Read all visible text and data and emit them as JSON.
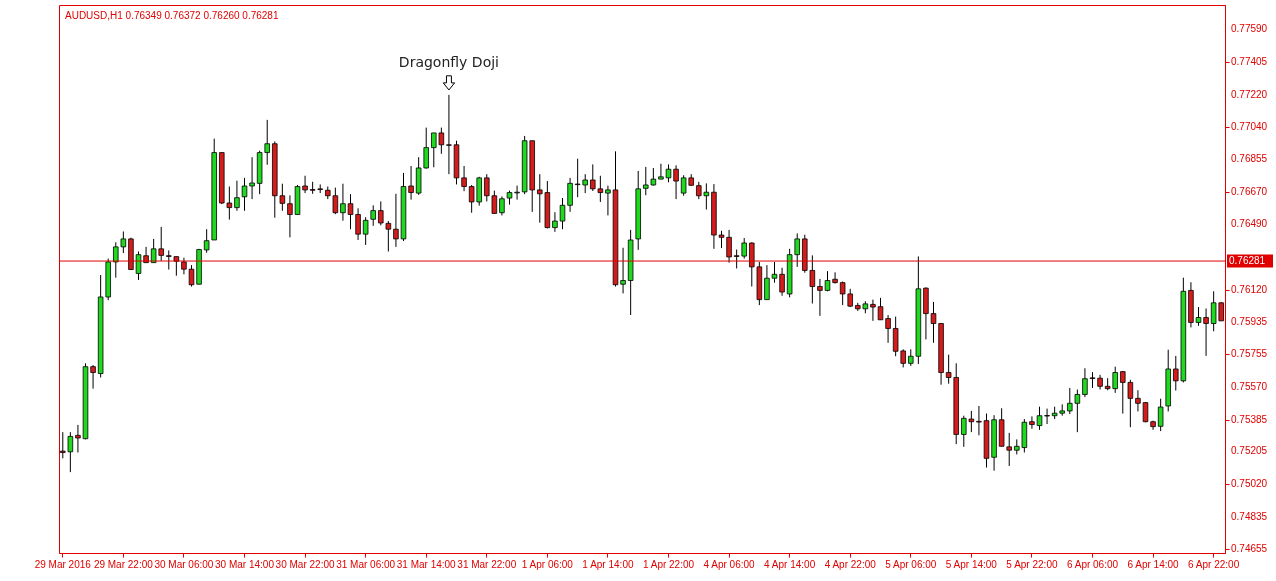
{
  "chart_data": {
    "type": "candlestick",
    "title": "AUDUSD,H1  0.76349 0.76372 0.76260 0.76281",
    "categories": [
      "29 Mar 2016",
      null,
      null,
      null,
      null,
      null,
      null,
      null,
      "29 Mar 22:00",
      null,
      null,
      null,
      null,
      null,
      null,
      null,
      "30 Mar 06:00",
      null,
      null,
      null,
      null,
      null,
      null,
      null,
      "30 Mar 14:00",
      null,
      null,
      null,
      null,
      null,
      null,
      null,
      "30 Mar 22:00",
      null,
      null,
      null,
      null,
      null,
      null,
      null,
      "31 Mar 06:00",
      null,
      null,
      null,
      null,
      null,
      null,
      null,
      "31 Mar 14:00",
      null,
      null,
      null,
      null,
      null,
      null,
      null,
      "31 Mar 22:00",
      null,
      null,
      null,
      null,
      null,
      null,
      null,
      "1 Apr 06:00",
      null,
      null,
      null,
      null,
      null,
      null,
      null,
      "1 Apr 14:00",
      null,
      null,
      null,
      null,
      null,
      null,
      null,
      "1 Apr 22:00",
      null,
      null,
      null,
      null,
      null,
      null,
      null,
      "4 Apr 06:00",
      null,
      null,
      null,
      null,
      null,
      null,
      null,
      "4 Apr 14:00",
      null,
      null,
      null,
      null,
      null,
      null,
      null,
      "4 Apr 22:00",
      null,
      null,
      null,
      null,
      null,
      null,
      null,
      "5 Apr 06:00",
      null,
      null,
      null,
      null,
      null,
      null,
      null,
      "5 Apr 14:00",
      null,
      null,
      null,
      null,
      null,
      null,
      null,
      "5 Apr 22:00",
      null,
      null,
      null,
      null,
      null,
      null,
      null,
      "6 Apr 06:00",
      null,
      null,
      null,
      null,
      null,
      null,
      null,
      "6 Apr 14:00",
      null,
      null,
      null,
      null,
      null,
      null,
      null,
      "6 Apr 22:00",
      null
    ],
    "ohlc": [
      [
        0.75207,
        0.75314,
        0.75166,
        0.75199
      ],
      [
        0.75203,
        0.75314,
        0.75088,
        0.7529
      ],
      [
        0.75296,
        0.75355,
        0.75199,
        0.75281
      ],
      [
        0.75277,
        0.75703,
        0.75273,
        0.75684
      ],
      [
        0.75684,
        0.75693,
        0.7556,
        0.75651
      ],
      [
        0.75645,
        0.76202,
        0.75623,
        0.76078
      ],
      [
        0.76078,
        0.76295,
        0.7606,
        0.76276
      ],
      [
        0.76276,
        0.76387,
        0.76187,
        0.76361
      ],
      [
        0.76361,
        0.76448,
        0.76326,
        0.76406
      ],
      [
        0.76406,
        0.76413,
        0.7623,
        0.76233
      ],
      [
        0.76211,
        0.76335,
        0.76174,
        0.76317
      ],
      [
        0.76311,
        0.76361,
        0.76272,
        0.76272
      ],
      [
        0.76272,
        0.76406,
        0.76272,
        0.7635
      ],
      [
        0.7635,
        0.76474,
        0.76282,
        0.76313
      ],
      [
        0.76311,
        0.76341,
        0.76233,
        0.76307
      ],
      [
        0.76306,
        0.76306,
        0.76198,
        0.7628
      ],
      [
        0.76276,
        0.763,
        0.76206,
        0.76235
      ],
      [
        0.76235,
        0.76258,
        0.76137,
        0.76147
      ],
      [
        0.7615,
        0.7635,
        0.7615,
        0.76346
      ],
      [
        0.76344,
        0.76461,
        0.76328,
        0.76396
      ],
      [
        0.764,
        0.76973,
        0.764,
        0.76894
      ],
      [
        0.76894,
        0.76894,
        0.76603,
        0.76609
      ],
      [
        0.76609,
        0.76702,
        0.76515,
        0.76583
      ],
      [
        0.76583,
        0.76735,
        0.76565,
        0.76639
      ],
      [
        0.76644,
        0.76751,
        0.76565,
        0.76705
      ],
      [
        0.76705,
        0.76868,
        0.76631,
        0.76722
      ],
      [
        0.7672,
        0.76905,
        0.76659,
        0.76894
      ],
      [
        0.76894,
        0.77079,
        0.76825,
        0.76944
      ],
      [
        0.76944,
        0.76957,
        0.76526,
        0.7665
      ],
      [
        0.7665,
        0.76718,
        0.76565,
        0.76607
      ],
      [
        0.76605,
        0.76652,
        0.76415,
        0.76544
      ],
      [
        0.76544,
        0.76711,
        0.76544,
        0.76702
      ],
      [
        0.76705,
        0.76763,
        0.76665,
        0.76683
      ],
      [
        0.76685,
        0.76729,
        0.76661,
        0.76681
      ],
      [
        0.76689,
        0.76714,
        0.76665,
        0.76685
      ],
      [
        0.76681,
        0.76702,
        0.76631,
        0.7665
      ],
      [
        0.7665,
        0.76696,
        0.76546,
        0.76554
      ],
      [
        0.76554,
        0.76718,
        0.76509,
        0.76605
      ],
      [
        0.76605,
        0.76659,
        0.76461,
        0.76544
      ],
      [
        0.76544,
        0.76579,
        0.764,
        0.76433
      ],
      [
        0.76433,
        0.76529,
        0.76372,
        0.76511
      ],
      [
        0.76517,
        0.76596,
        0.7648,
        0.76566
      ],
      [
        0.76566,
        0.76618,
        0.76483,
        0.76496
      ],
      [
        0.76494,
        0.76507,
        0.76335,
        0.76461
      ],
      [
        0.76461,
        0.76661,
        0.76361,
        0.76406
      ],
      [
        0.76406,
        0.76779,
        0.76394,
        0.76702
      ],
      [
        0.76705,
        0.76818,
        0.76628,
        0.76668
      ],
      [
        0.76665,
        0.76868,
        0.76655,
        0.76807
      ],
      [
        0.76807,
        0.77035,
        0.76803,
        0.76922
      ],
      [
        0.76922,
        0.77005,
        0.76811,
        0.77005
      ],
      [
        0.77005,
        0.77035,
        0.76887,
        0.76938
      ],
      [
        0.76938,
        0.7722,
        0.76772,
        0.76935
      ],
      [
        0.76938,
        0.76961,
        0.76714,
        0.76751
      ],
      [
        0.76751,
        0.76818,
        0.76676,
        0.76702
      ],
      [
        0.76702,
        0.76711,
        0.76554,
        0.76615
      ],
      [
        0.76615,
        0.76757,
        0.76594,
        0.76751
      ],
      [
        0.76751,
        0.76772,
        0.76618,
        0.7665
      ],
      [
        0.7665,
        0.76679,
        0.7655,
        0.7655
      ],
      [
        0.76554,
        0.76646,
        0.76539,
        0.76633
      ],
      [
        0.76637,
        0.76679,
        0.766,
        0.76668
      ],
      [
        0.76666,
        0.76707,
        0.76628,
        0.7667
      ],
      [
        0.76672,
        0.76988,
        0.76659,
        0.76961
      ],
      [
        0.76961,
        0.76961,
        0.76559,
        0.76683
      ],
      [
        0.76683,
        0.76772,
        0.76498,
        0.76661
      ],
      [
        0.76668,
        0.76733,
        0.76465,
        0.7647
      ],
      [
        0.7647,
        0.76557,
        0.76446,
        0.76507
      ],
      [
        0.76507,
        0.76637,
        0.76461,
        0.76596
      ],
      [
        0.76596,
        0.76751,
        0.76559,
        0.7672
      ],
      [
        0.76716,
        0.76859,
        0.76642,
        0.76713
      ],
      [
        0.76711,
        0.76772,
        0.76665,
        0.76739
      ],
      [
        0.76739,
        0.76827,
        0.76677,
        0.76689
      ],
      [
        0.76689,
        0.76763,
        0.76615,
        0.76668
      ],
      [
        0.76665,
        0.76707,
        0.76539,
        0.76683
      ],
      [
        0.76683,
        0.76901,
        0.76137,
        0.76147
      ],
      [
        0.7615,
        0.76356,
        0.76098,
        0.76171
      ],
      [
        0.76171,
        0.76457,
        0.75976,
        0.764
      ],
      [
        0.76406,
        0.7679,
        0.76344,
        0.76689
      ],
      [
        0.76692,
        0.76813,
        0.76653,
        0.76711
      ],
      [
        0.76711,
        0.76807,
        0.76707,
        0.76744
      ],
      [
        0.76744,
        0.76831,
        0.76744,
        0.76757
      ],
      [
        0.76751,
        0.76827,
        0.76726,
        0.768
      ],
      [
        0.768,
        0.76822,
        0.76631,
        0.76733
      ],
      [
        0.76665,
        0.76766,
        0.7665,
        0.76751
      ],
      [
        0.76751,
        0.76772,
        0.76705,
        0.76709
      ],
      [
        0.76707,
        0.76729,
        0.76631,
        0.7665
      ],
      [
        0.7665,
        0.7672,
        0.76572,
        0.7667
      ],
      [
        0.7667,
        0.76716,
        0.7635,
        0.76428
      ],
      [
        0.76428,
        0.76452,
        0.76354,
        0.76415
      ],
      [
        0.76415,
        0.76457,
        0.76272,
        0.76304
      ],
      [
        0.76311,
        0.76346,
        0.76239,
        0.76307
      ],
      [
        0.76309,
        0.76411,
        0.76295,
        0.76383
      ],
      [
        0.76383,
        0.76387,
        0.76137,
        0.76248
      ],
      [
        0.76248,
        0.76276,
        0.76032,
        0.76063
      ],
      [
        0.76063,
        0.76258,
        0.76063,
        0.76184
      ],
      [
        0.76184,
        0.76276,
        0.76159,
        0.76206
      ],
      [
        0.76206,
        0.76243,
        0.76085,
        0.76106
      ],
      [
        0.76095,
        0.7635,
        0.76076,
        0.76317
      ],
      [
        0.76317,
        0.76437,
        0.76248,
        0.76406
      ],
      [
        0.76406,
        0.7643,
        0.76215,
        0.76228
      ],
      [
        0.76228,
        0.76313,
        0.76041,
        0.76137
      ],
      [
        0.76137,
        0.7618,
        0.75971,
        0.76115
      ],
      [
        0.76115,
        0.76224,
        0.7611,
        0.76171
      ],
      [
        0.76178,
        0.76217,
        0.76154,
        0.76159
      ],
      [
        0.76159,
        0.76165,
        0.76032,
        0.76095
      ],
      [
        0.76095,
        0.76124,
        0.76021,
        0.76026
      ],
      [
        0.7603,
        0.76045,
        0.75999,
        0.76011
      ],
      [
        0.76011,
        0.76054,
        0.75986,
        0.76039
      ],
      [
        0.76036,
        0.76063,
        0.75943,
        0.76021
      ],
      [
        0.76023,
        0.76073,
        0.75949,
        0.75949
      ],
      [
        0.75956,
        0.75976,
        0.75819,
        0.759
      ],
      [
        0.759,
        0.75967,
        0.75743,
        0.75771
      ],
      [
        0.75773,
        0.75782,
        0.7568,
        0.75703
      ],
      [
        0.75703,
        0.75782,
        0.75688,
        0.75743
      ],
      [
        0.75743,
        0.76307,
        0.75699,
        0.76124
      ],
      [
        0.76128,
        0.76132,
        0.75838,
        0.75984
      ],
      [
        0.75984,
        0.7605,
        0.75819,
        0.75928
      ],
      [
        0.75928,
        0.75928,
        0.75582,
        0.75651
      ],
      [
        0.75651,
        0.75752,
        0.75588,
        0.75623
      ],
      [
        0.75623,
        0.75703,
        0.75246,
        0.75301
      ],
      [
        0.75301,
        0.75407,
        0.75231,
        0.75392
      ],
      [
        0.75388,
        0.75434,
        0.75314,
        0.75373
      ],
      [
        0.75375,
        0.75462,
        0.75296,
        0.75371
      ],
      [
        0.75379,
        0.75419,
        0.75114,
        0.75166
      ],
      [
        0.75172,
        0.7541,
        0.75096,
        0.75384
      ],
      [
        0.75384,
        0.75449,
        0.75234,
        0.75234
      ],
      [
        0.75231,
        0.7531,
        0.75123,
        0.75212
      ],
      [
        0.75212,
        0.75273,
        0.75188,
        0.75234
      ],
      [
        0.75227,
        0.75388,
        0.75199,
        0.7537
      ],
      [
        0.75373,
        0.75403,
        0.75333,
        0.75357
      ],
      [
        0.75351,
        0.75458,
        0.75327,
        0.75407
      ],
      [
        0.75408,
        0.75447,
        0.7536,
        0.75405
      ],
      [
        0.75407,
        0.75458,
        0.75388,
        0.75421
      ],
      [
        0.75421,
        0.75471,
        0.75407,
        0.75434
      ],
      [
        0.75434,
        0.75564,
        0.75416,
        0.75477
      ],
      [
        0.75477,
        0.75555,
        0.75314,
        0.75527
      ],
      [
        0.75527,
        0.75675,
        0.75512,
        0.75616
      ],
      [
        0.75621,
        0.75653,
        0.75564,
        0.75617
      ],
      [
        0.75619,
        0.75638,
        0.75555,
        0.75573
      ],
      [
        0.75573,
        0.75619,
        0.75551,
        0.7556
      ],
      [
        0.7556,
        0.75684,
        0.75536,
        0.75651
      ],
      [
        0.75656,
        0.7566,
        0.75419,
        0.75595
      ],
      [
        0.75595,
        0.7561,
        0.75342,
        0.75505
      ],
      [
        0.75505,
        0.75551,
        0.75431,
        0.75477
      ],
      [
        0.75481,
        0.75484,
        0.7537,
        0.75373
      ],
      [
        0.75373,
        0.75379,
        0.75327,
        0.75345
      ],
      [
        0.75347,
        0.75503,
        0.7532,
        0.75456
      ],
      [
        0.75462,
        0.7578,
        0.75431,
        0.75671
      ],
      [
        0.75671,
        0.75745,
        0.75549,
        0.75604
      ],
      [
        0.75604,
        0.76187,
        0.75595,
        0.7611
      ],
      [
        0.76115,
        0.76161,
        0.75906,
        0.75934
      ],
      [
        0.75934,
        0.76021,
        0.75915,
        0.75962
      ],
      [
        0.75962,
        0.76013,
        0.75745,
        0.75928
      ],
      [
        0.75928,
        0.7611,
        0.75884,
        0.76045
      ],
      [
        0.76045,
        0.7605,
        0.75943,
        0.75943
      ]
    ],
    "colors": [
      "#d41c1c",
      "#20d820",
      "#d41c1c",
      "#20d820",
      "#d41c1c",
      "#20d820",
      "#20d820",
      "#20d820",
      "#20d820",
      "#d41c1c",
      "#20d820",
      "#d41c1c",
      "#20d820",
      "#d41c1c",
      "#d41c1c",
      "#d41c1c",
      "#d41c1c",
      "#d41c1c",
      "#20d820",
      "#20d820",
      "#20d820",
      "#d41c1c",
      "#d41c1c",
      "#20d820",
      "#20d820",
      "#20d820",
      "#20d820",
      "#20d820",
      "#d41c1c",
      "#d41c1c",
      "#d41c1c",
      "#20d820",
      "#d41c1c",
      "#d41c1c",
      "#d41c1c",
      "#d41c1c",
      "#d41c1c",
      "#20d820",
      "#d41c1c",
      "#d41c1c",
      "#20d820",
      "#20d820",
      "#d41c1c",
      "#d41c1c",
      "#d41c1c",
      "#20d820",
      "#d41c1c",
      "#20d820",
      "#20d820",
      "#20d820",
      "#d41c1c",
      "#d41c1c",
      "#d41c1c",
      "#d41c1c",
      "#d41c1c",
      "#20d820",
      "#d41c1c",
      "#d41c1c",
      "#20d820",
      "#20d820",
      "#20d820",
      "#20d820",
      "#d41c1c",
      "#d41c1c",
      "#d41c1c",
      "#20d820",
      "#20d820",
      "#20d820",
      "#d41c1c",
      "#20d820",
      "#d41c1c",
      "#d41c1c",
      "#20d820",
      "#d41c1c",
      "#20d820",
      "#20d820",
      "#20d820",
      "#20d820",
      "#20d820",
      "#20d820",
      "#20d820",
      "#d41c1c",
      "#20d820",
      "#d41c1c",
      "#d41c1c",
      "#20d820",
      "#d41c1c",
      "#d41c1c",
      "#d41c1c",
      "#d41c1c",
      "#20d820",
      "#d41c1c",
      "#d41c1c",
      "#20d820",
      "#20d820",
      "#d41c1c",
      "#20d820",
      "#20d820",
      "#d41c1c",
      "#d41c1c",
      "#d41c1c",
      "#20d820",
      "#d41c1c",
      "#d41c1c",
      "#d41c1c",
      "#d41c1c",
      "#20d820",
      "#d41c1c",
      "#d41c1c",
      "#d41c1c",
      "#d41c1c",
      "#d41c1c",
      "#20d820",
      "#20d820",
      "#d41c1c",
      "#d41c1c",
      "#d41c1c",
      "#d41c1c",
      "#d41c1c",
      "#20d820",
      "#d41c1c",
      "#d41c1c",
      "#d41c1c",
      "#20d820",
      "#d41c1c",
      "#d41c1c",
      "#20d820",
      "#20d820",
      "#d41c1c",
      "#20d820",
      "#d41c1c",
      "#20d820",
      "#20d820",
      "#20d820",
      "#20d820",
      "#20d820",
      "#d41c1c",
      "#d41c1c",
      "#d41c1c",
      "#20d820",
      "#d41c1c",
      "#d41c1c",
      "#d41c1c",
      "#d41c1c",
      "#d41c1c",
      "#20d820",
      "#20d820",
      "#d41c1c",
      "#20d820",
      "#d41c1c",
      "#20d820",
      "#d41c1c",
      "#20d820",
      "#d41c1c"
    ],
    "ylim": [
      0.74631,
      0.77728
    ],
    "yticks": [
      {
        "value": 0.7759,
        "label": "0.77590"
      },
      0.77405,
      {
        "value": 0.7722,
        "label": "0.77220"
      },
      {
        "value": 0.7704,
        "label": "0.77040"
      },
      0.76855,
      {
        "value": 0.7667,
        "label": "0.76670"
      },
      {
        "value": 0.7649,
        "label": "0.76490"
      },
      {
        "value": 0.7612,
        "label": "0.76120"
      },
      0.75935,
      0.75755,
      {
        "value": 0.7557,
        "label": "0.75570"
      },
      0.75385,
      0.75205,
      {
        "value": 0.7502,
        "label": "0.75020"
      },
      0.74835,
      0.74655
    ],
    "ref_lines": [
      {
        "axis": "y",
        "value": 0.76281,
        "label": "0.76281",
        "color": "#e00000"
      }
    ],
    "annotations": [
      {
        "text": "Dragonfly Doji",
        "y": 0.7722
      }
    ]
  }
}
